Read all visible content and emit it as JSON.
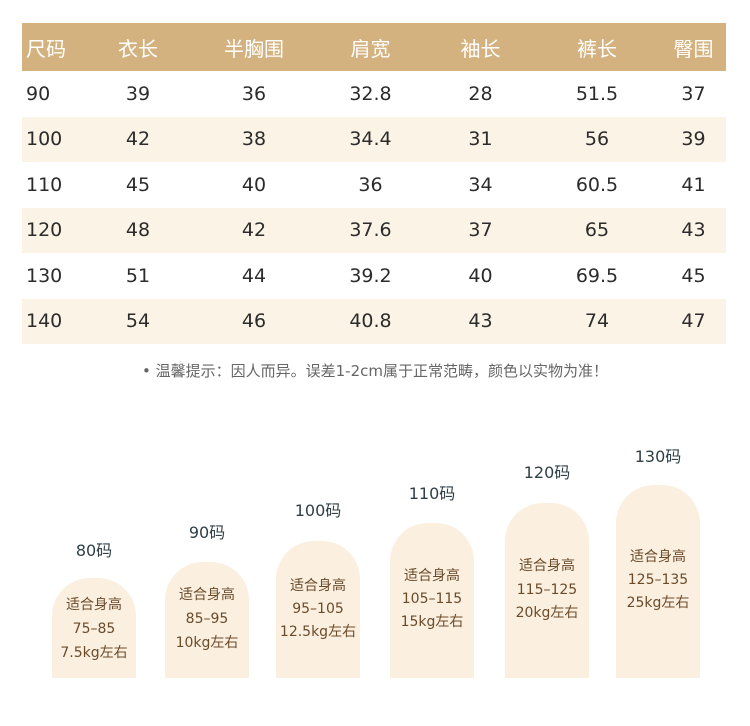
{
  "table": {
    "headers": [
      "尺码",
      "衣长",
      "半胸围",
      "肩宽",
      "袖长",
      "裤长",
      "臀围"
    ],
    "rows": [
      [
        "90",
        "39",
        "36",
        "32.8",
        "28",
        "51.5",
        "37"
      ],
      [
        "100",
        "42",
        "38",
        "34.4",
        "31",
        "56",
        "39"
      ],
      [
        "110",
        "45",
        "40",
        "36",
        "34",
        "60.5",
        "41"
      ],
      [
        "120",
        "48",
        "42",
        "37.6",
        "37",
        "65",
        "43"
      ],
      [
        "130",
        "51",
        "44",
        "39.2",
        "40",
        "69.5",
        "45"
      ],
      [
        "140",
        "54",
        "46",
        "40.8",
        "43",
        "74",
        "47"
      ]
    ]
  },
  "note": "• 温馨提示：因人而异。误差1-2cm属于正常范畴，颜色以实物为准！",
  "sizes": [
    {
      "label": "80码",
      "line1": "适合身高",
      "line2": "75–85",
      "line3": "7.5kg左右"
    },
    {
      "label": "90码",
      "line1": "适合身高",
      "line2": "85–95",
      "line3": "10kg左右"
    },
    {
      "label": "100码",
      "line1": "适合身高",
      "line2": "95–105",
      "line3": "12.5kg左右"
    },
    {
      "label": "110码",
      "line1": "适合身高",
      "line2": "105–115",
      "line3": "15kg左右"
    },
    {
      "label": "120码",
      "line1": "适合身高",
      "line2": "115–125",
      "line3": "20kg左右"
    },
    {
      "label": "130码",
      "line1": "适合身高",
      "line2": "125–135",
      "line3": "25kg左右"
    }
  ]
}
